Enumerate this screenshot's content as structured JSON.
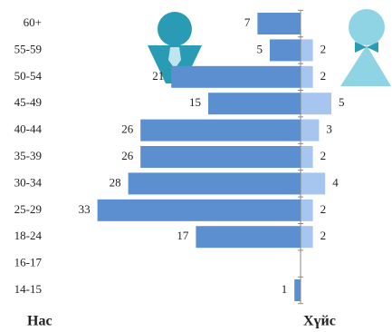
{
  "chart_data": {
    "type": "pyramid",
    "categories": [
      "60+",
      "55-59",
      "50-54",
      "45-49",
      "40-44",
      "35-39",
      "30-34",
      "25-29",
      "18-24",
      "16-17",
      "14-15"
    ],
    "series": [
      {
        "color": "#5b8fcf",
        "values": [
          7,
          5,
          21,
          15,
          26,
          26,
          28,
          33,
          17,
          null,
          1
        ]
      },
      {
        "color": "#a6c6ef",
        "values": [
          null,
          2,
          2,
          5,
          3,
          2,
          4,
          2,
          2,
          null,
          null
        ]
      }
    ],
    "xlim": [
      0,
      35
    ],
    "y_axis_label": "Нас",
    "x_axis_label": "Хүйс"
  }
}
